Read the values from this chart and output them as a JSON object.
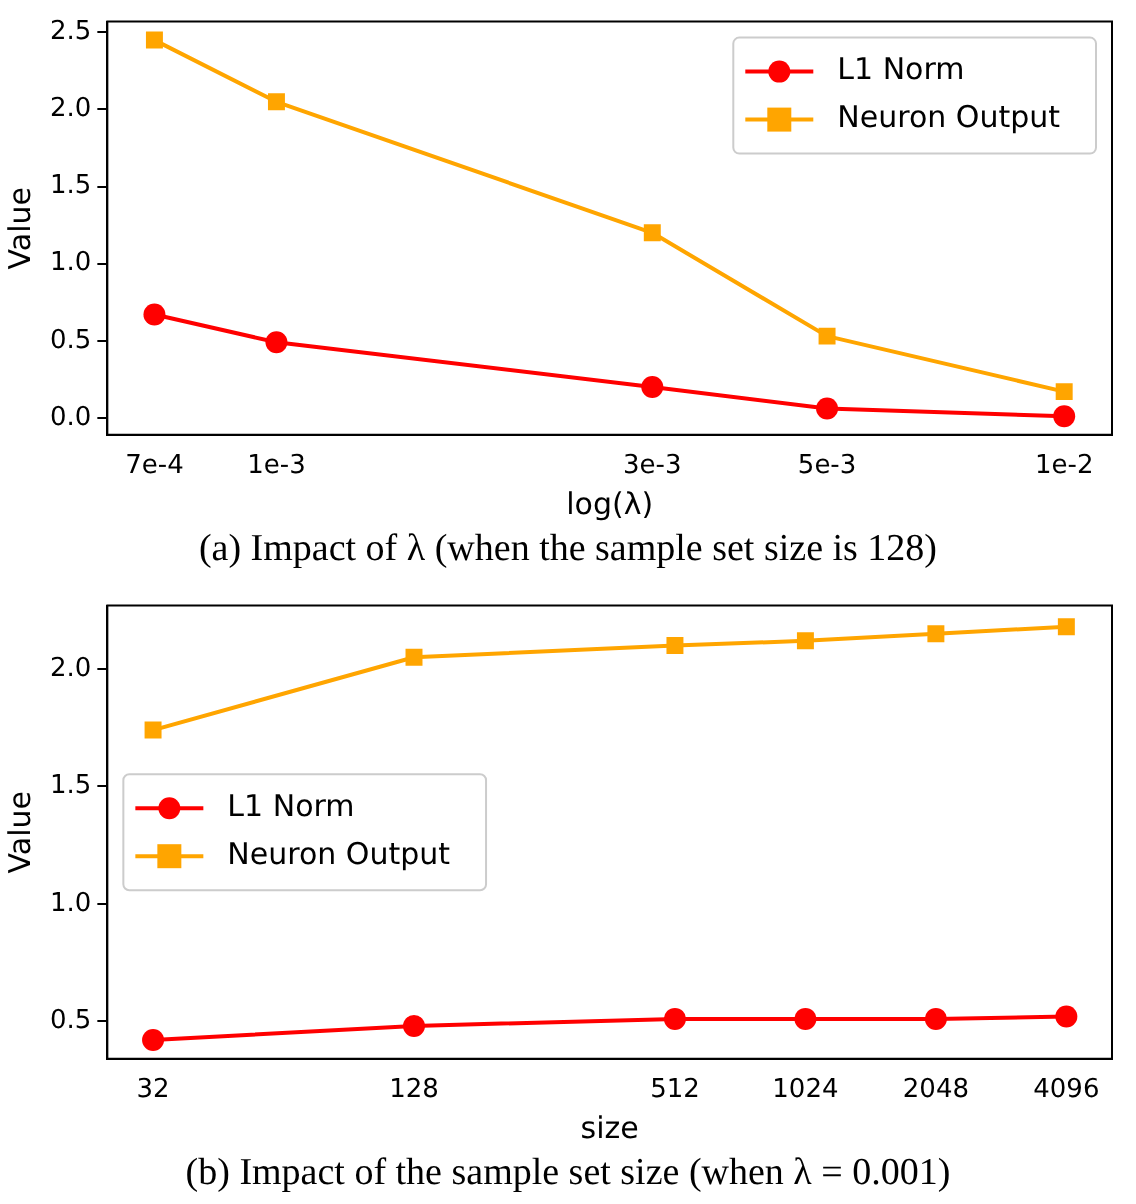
{
  "chart_data": [
    {
      "type": "line",
      "xlabel": "log(λ)",
      "ylabel": "Value",
      "x": [
        0.0007,
        0.001,
        0.003,
        0.005,
        0.01
      ],
      "log": "x",
      "xlim": [
        0.00061,
        0.0115
      ],
      "xticks": [
        {
          "value": 0.0007,
          "label": "7e-4"
        },
        {
          "value": 0.001,
          "label": "1e-3"
        },
        {
          "value": 0.003,
          "label": "3e-3"
        },
        {
          "value": 0.005,
          "label": "5e-3"
        },
        {
          "value": 0.01,
          "label": "1e-2"
        }
      ],
      "ylim": [
        -0.11,
        2.57
      ],
      "yticks": [
        {
          "value": 0,
          "label": "0.0"
        },
        {
          "value": 0.5,
          "label": "0.5"
        },
        {
          "value": 1,
          "label": "1.0"
        },
        {
          "value": 1.5,
          "label": "1.5"
        },
        {
          "value": 2,
          "label": "2.0"
        },
        {
          "value": 2.5,
          "label": "2.5"
        }
      ],
      "grid": false,
      "legend": "top right",
      "line_style": "solid",
      "series": [
        {
          "name": "L1 Norm",
          "color": "#ff0000",
          "marker": "circle",
          "values": [
            0.67,
            0.49,
            0.2,
            0.06,
            0.01
          ]
        },
        {
          "name": "Neuron Output",
          "color": "#ffa500",
          "marker": "square",
          "values": [
            2.45,
            2.05,
            1.2,
            0.53,
            0.17
          ]
        }
      ],
      "annotations": [
        "(a) Impact of λ (when the sample set size is 128)"
      ]
    },
    {
      "type": "line",
      "xlabel": "size",
      "ylabel": "Value",
      "x": [
        32,
        128,
        512,
        1024,
        2048,
        4096
      ],
      "log": "x",
      "xlim": [
        25.1,
        5220
      ],
      "xticks": [
        32,
        128,
        512,
        1024,
        2048,
        4096
      ],
      "ylim": [
        0.34,
        2.27
      ],
      "yticks": [
        {
          "value": 0.5,
          "label": "0.5"
        },
        {
          "value": 1,
          "label": "1.0"
        },
        {
          "value": 1.5,
          "label": "1.5"
        },
        {
          "value": 2,
          "label": "2.0"
        }
      ],
      "grid": false,
      "legend": "left",
      "line_style": "solid",
      "series": [
        {
          "name": "L1 Norm",
          "color": "#ff0000",
          "marker": "circle",
          "values": [
            0.42,
            0.48,
            0.51,
            0.51,
            0.51,
            0.52
          ]
        },
        {
          "name": "Neuron Output",
          "color": "#ffa500",
          "marker": "square",
          "values": [
            1.74,
            2.05,
            2.1,
            2.12,
            2.15,
            2.18
          ]
        }
      ],
      "annotations": [
        "(b) Impact of the sample set size (when λ = 0.001)"
      ]
    }
  ]
}
